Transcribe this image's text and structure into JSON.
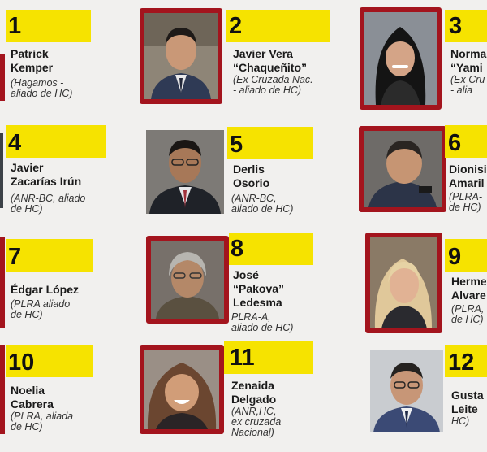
{
  "candidates": [
    {
      "number": "1",
      "name": "Patrick\nKemper",
      "affiliation": "(Hagamos -\naliado de HC)"
    },
    {
      "number": "2",
      "name": "Javier Vera\n“Chaqueñito”",
      "affiliation": "(Ex Cruzada Nac.\n- aliado de HC)"
    },
    {
      "number": "3",
      "name": "Norma\n“Yami",
      "affiliation": "(Ex Cru\n- alia"
    },
    {
      "number": "4",
      "name": "Javier\nZacarías Irún",
      "affiliation": "(ANR-BC, aliado\nde HC)"
    },
    {
      "number": "5",
      "name": "Derlis\nOsorio",
      "affiliation": "(ANR-BC,\n aliado de HC)"
    },
    {
      "number": "6",
      "name": "Dionisi\nAmaril",
      "affiliation": "(PLRA-\nde HC)"
    },
    {
      "number": "7",
      "name": "Édgar López",
      "affiliation": "(PLRA aliado\nde HC)"
    },
    {
      "number": "8",
      "name": "José\n“Pakova”\nLedesma",
      "affiliation": "PLRA-A,\naliado de HC)"
    },
    {
      "number": "9",
      "name": "Herme\nAlvare",
      "affiliation": "(PLRA,\nde HC)"
    },
    {
      "number": "10",
      "name": "Noelia\nCabrera",
      "affiliation": "(PLRA, aliada\nde HC)"
    },
    {
      "number": "11",
      "name": "Zenaida\nDelgado",
      "affiliation": "(ANR,HC,\nex cruzada\nNacional)"
    },
    {
      "number": "12",
      "name": "Gusta\nLeite",
      "affiliation": "HC)"
    }
  ],
  "colors": {
    "number_highlight": "#f6e300",
    "frame_red": "#a3141d",
    "background": "#f1f0ee"
  }
}
